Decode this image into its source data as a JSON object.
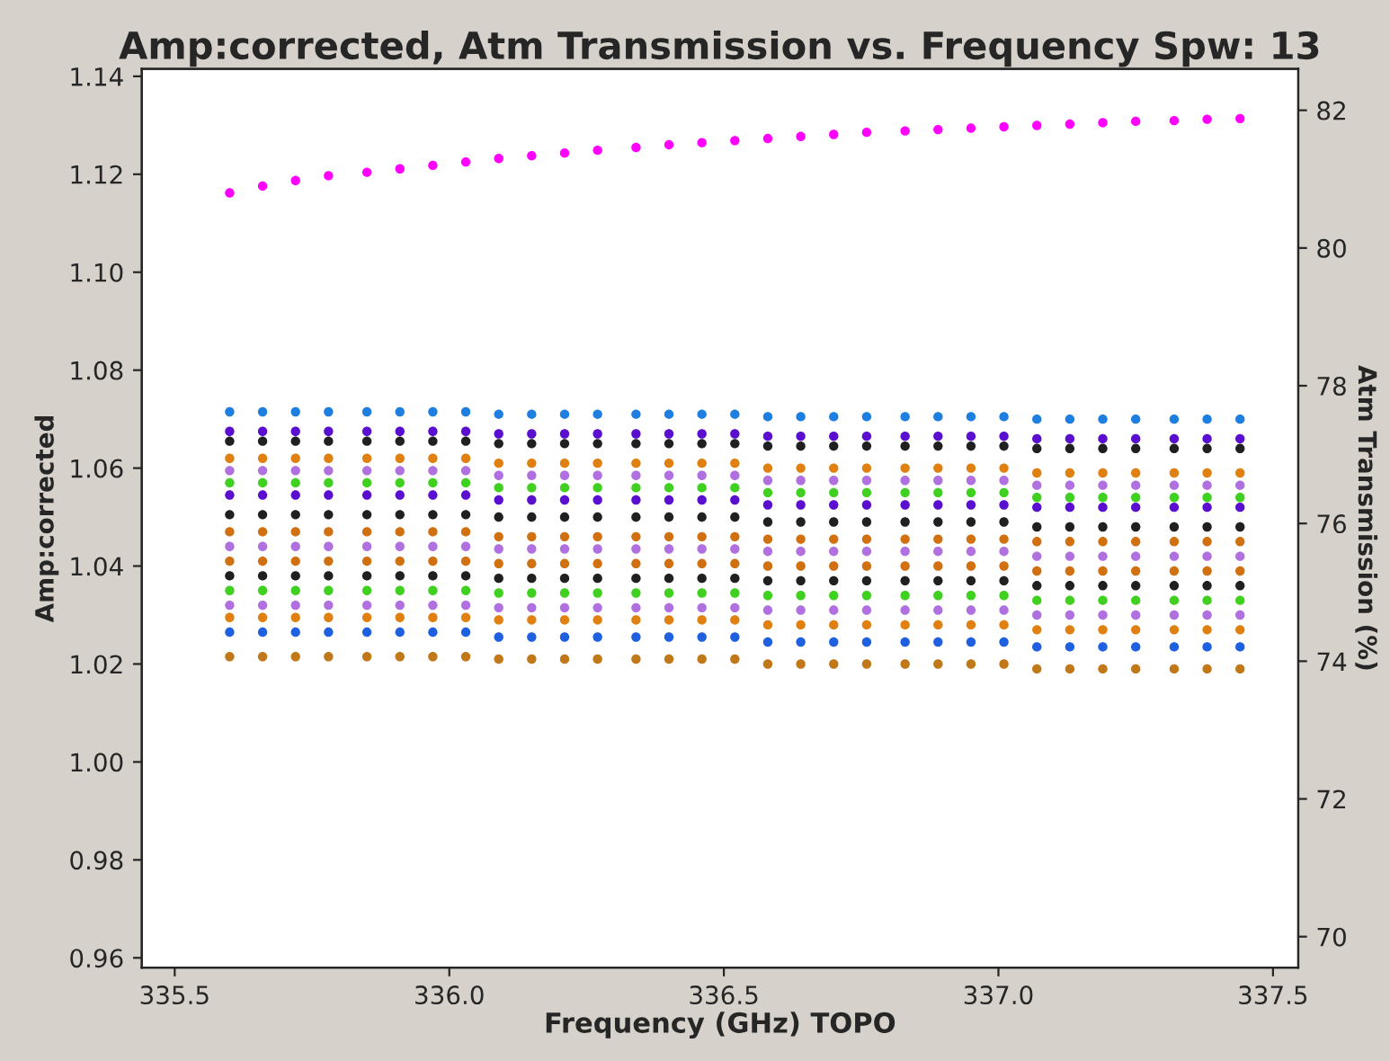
{
  "chart_data": {
    "type": "scatter",
    "title": "Amp:corrected, Atm Transmission vs. Frequency Spw: 13",
    "xlabel": "Frequency (GHz) TOPO",
    "ylabel": "Amp:corrected",
    "y2label": "Atm Transmission (%)",
    "x": [
      335.6,
      335.66,
      335.72,
      335.78,
      335.85,
      335.91,
      335.97,
      336.03,
      336.09,
      336.15,
      336.21,
      336.27,
      336.34,
      336.4,
      336.46,
      336.52,
      336.58,
      336.64,
      336.7,
      336.76,
      336.83,
      336.89,
      336.95,
      337.01,
      337.07,
      337.13,
      337.19,
      337.25,
      337.32,
      337.38,
      337.44
    ],
    "xlim": [
      335.44,
      337.546
    ],
    "xticks": [
      335.5,
      {
        "value": 336.0,
        "label": "336.0"
      },
      336.5,
      {
        "value": 337.0,
        "label": "337.0"
      },
      337.5
    ],
    "ylim": [
      0.958,
      1.1415
    ],
    "yticks": [
      {
        "value": 0.96,
        "label": "0.96"
      },
      {
        "value": 0.98,
        "label": "0.98"
      },
      {
        "value": 1.0,
        "label": "1.00"
      },
      {
        "value": 1.02,
        "label": "1.02"
      },
      {
        "value": 1.04,
        "label": "1.04"
      },
      {
        "value": 1.06,
        "label": "1.06"
      },
      {
        "value": 1.08,
        "label": "1.08"
      },
      {
        "value": 1.1,
        "label": "1.10"
      },
      {
        "value": 1.12,
        "label": "1.12"
      },
      {
        "value": 1.14,
        "label": "1.14"
      }
    ],
    "y2lim": [
      69.55,
      82.6
    ],
    "y2ticks": [
      70,
      72,
      74,
      76,
      78,
      80,
      82
    ],
    "marker": "circle",
    "grid": false,
    "legend": false,
    "series": [
      {
        "color": "#1f7fe0",
        "values": [
          1.0715,
          1.0715,
          1.0715,
          1.0715,
          1.0715,
          1.0715,
          1.0715,
          1.0715,
          1.071,
          1.071,
          1.071,
          1.071,
          1.071,
          1.071,
          1.071,
          1.071,
          1.0705,
          1.0705,
          1.0705,
          1.0705,
          1.0705,
          1.0705,
          1.0705,
          1.0705,
          1.07,
          1.07,
          1.07,
          1.07,
          1.07,
          1.07,
          1.07
        ]
      },
      {
        "color": "#5a0fd0",
        "values": [
          1.0675,
          1.0675,
          1.0675,
          1.0675,
          1.0675,
          1.0675,
          1.0675,
          1.0675,
          1.067,
          1.067,
          1.067,
          1.067,
          1.067,
          1.067,
          1.067,
          1.067,
          1.0665,
          1.0665,
          1.0665,
          1.0665,
          1.0665,
          1.0665,
          1.0665,
          1.0665,
          1.066,
          1.066,
          1.066,
          1.066,
          1.066,
          1.066,
          1.066
        ]
      },
      {
        "color": "#202020",
        "values": [
          1.0655,
          1.0655,
          1.0655,
          1.0655,
          1.0655,
          1.0655,
          1.0655,
          1.0655,
          1.065,
          1.065,
          1.065,
          1.065,
          1.065,
          1.065,
          1.065,
          1.065,
          1.0645,
          1.0645,
          1.0645,
          1.0645,
          1.0645,
          1.0645,
          1.0645,
          1.0645,
          1.064,
          1.064,
          1.064,
          1.064,
          1.064,
          1.064,
          1.064
        ]
      },
      {
        "color": "#e08010",
        "values": [
          1.062,
          1.062,
          1.062,
          1.062,
          1.062,
          1.062,
          1.062,
          1.062,
          1.061,
          1.061,
          1.061,
          1.061,
          1.061,
          1.061,
          1.061,
          1.061,
          1.06,
          1.06,
          1.06,
          1.06,
          1.06,
          1.06,
          1.06,
          1.06,
          1.059,
          1.059,
          1.059,
          1.059,
          1.059,
          1.059,
          1.059
        ]
      },
      {
        "color": "#b070e0",
        "values": [
          1.0595,
          1.0595,
          1.0595,
          1.0595,
          1.0595,
          1.0595,
          1.0595,
          1.0595,
          1.0585,
          1.0585,
          1.0585,
          1.0585,
          1.0585,
          1.0585,
          1.0585,
          1.0585,
          1.0575,
          1.0575,
          1.0575,
          1.0575,
          1.0575,
          1.0575,
          1.0575,
          1.0575,
          1.0565,
          1.0565,
          1.0565,
          1.0565,
          1.0565,
          1.0565,
          1.0565
        ]
      },
      {
        "color": "#40d020",
        "values": [
          1.057,
          1.057,
          1.057,
          1.057,
          1.057,
          1.057,
          1.057,
          1.057,
          1.056,
          1.056,
          1.056,
          1.056,
          1.056,
          1.056,
          1.056,
          1.056,
          1.055,
          1.055,
          1.055,
          1.055,
          1.055,
          1.055,
          1.055,
          1.055,
          1.054,
          1.054,
          1.054,
          1.054,
          1.054,
          1.054,
          1.054
        ]
      },
      {
        "color": "#5a0fd0",
        "values": [
          1.0545,
          1.0545,
          1.0545,
          1.0545,
          1.0545,
          1.0545,
          1.0545,
          1.0545,
          1.0535,
          1.0535,
          1.0535,
          1.0535,
          1.0535,
          1.0535,
          1.0535,
          1.0535,
          1.0525,
          1.0525,
          1.0525,
          1.0525,
          1.0525,
          1.0525,
          1.0525,
          1.0525,
          1.052,
          1.052,
          1.052,
          1.052,
          1.052,
          1.052,
          1.052
        ]
      },
      {
        "color": "#202020",
        "values": [
          1.0505,
          1.0505,
          1.0505,
          1.0505,
          1.0505,
          1.0505,
          1.0505,
          1.0505,
          1.05,
          1.05,
          1.05,
          1.05,
          1.05,
          1.05,
          1.05,
          1.05,
          1.049,
          1.049,
          1.049,
          1.049,
          1.049,
          1.049,
          1.049,
          1.049,
          1.048,
          1.048,
          1.048,
          1.048,
          1.048,
          1.048,
          1.048
        ]
      },
      {
        "color": "#d07010",
        "values": [
          1.047,
          1.047,
          1.047,
          1.047,
          1.047,
          1.047,
          1.047,
          1.047,
          1.046,
          1.046,
          1.046,
          1.046,
          1.046,
          1.046,
          1.046,
          1.046,
          1.0455,
          1.0455,
          1.0455,
          1.0455,
          1.0455,
          1.0455,
          1.0455,
          1.0455,
          1.045,
          1.045,
          1.045,
          1.045,
          1.045,
          1.045,
          1.045
        ]
      },
      {
        "color": "#b070e0",
        "values": [
          1.044,
          1.044,
          1.044,
          1.044,
          1.044,
          1.044,
          1.044,
          1.044,
          1.0435,
          1.0435,
          1.0435,
          1.0435,
          1.0435,
          1.0435,
          1.0435,
          1.0435,
          1.043,
          1.043,
          1.043,
          1.043,
          1.043,
          1.043,
          1.043,
          1.043,
          1.042,
          1.042,
          1.042,
          1.042,
          1.042,
          1.042,
          1.042
        ]
      },
      {
        "color": "#d07010",
        "values": [
          1.041,
          1.041,
          1.041,
          1.041,
          1.041,
          1.041,
          1.041,
          1.041,
          1.0405,
          1.0405,
          1.0405,
          1.0405,
          1.0405,
          1.0405,
          1.0405,
          1.0405,
          1.04,
          1.04,
          1.04,
          1.04,
          1.04,
          1.04,
          1.04,
          1.04,
          1.039,
          1.039,
          1.039,
          1.039,
          1.039,
          1.039,
          1.039
        ]
      },
      {
        "color": "#202020",
        "values": [
          1.038,
          1.038,
          1.038,
          1.038,
          1.038,
          1.038,
          1.038,
          1.038,
          1.0375,
          1.0375,
          1.0375,
          1.0375,
          1.0375,
          1.0375,
          1.0375,
          1.0375,
          1.037,
          1.037,
          1.037,
          1.037,
          1.037,
          1.037,
          1.037,
          1.037,
          1.036,
          1.036,
          1.036,
          1.036,
          1.036,
          1.036,
          1.036
        ]
      },
      {
        "color": "#40d020",
        "values": [
          1.035,
          1.035,
          1.035,
          1.035,
          1.035,
          1.035,
          1.035,
          1.035,
          1.0345,
          1.0345,
          1.0345,
          1.0345,
          1.0345,
          1.0345,
          1.0345,
          1.0345,
          1.034,
          1.034,
          1.034,
          1.034,
          1.034,
          1.034,
          1.034,
          1.034,
          1.033,
          1.033,
          1.033,
          1.033,
          1.033,
          1.033,
          1.033
        ]
      },
      {
        "color": "#b070e0",
        "values": [
          1.032,
          1.032,
          1.032,
          1.032,
          1.032,
          1.032,
          1.032,
          1.032,
          1.0315,
          1.0315,
          1.0315,
          1.0315,
          1.0315,
          1.0315,
          1.0315,
          1.0315,
          1.031,
          1.031,
          1.031,
          1.031,
          1.031,
          1.031,
          1.031,
          1.031,
          1.03,
          1.03,
          1.03,
          1.03,
          1.03,
          1.03,
          1.03
        ]
      },
      {
        "color": "#e08010",
        "values": [
          1.0295,
          1.0295,
          1.0295,
          1.0295,
          1.0295,
          1.0295,
          1.0295,
          1.0295,
          1.029,
          1.029,
          1.029,
          1.029,
          1.029,
          1.029,
          1.029,
          1.029,
          1.028,
          1.028,
          1.028,
          1.028,
          1.028,
          1.028,
          1.028,
          1.028,
          1.027,
          1.027,
          1.027,
          1.027,
          1.027,
          1.027,
          1.027
        ]
      },
      {
        "color": "#1f60e0",
        "values": [
          1.0265,
          1.0265,
          1.0265,
          1.0265,
          1.0265,
          1.0265,
          1.0265,
          1.0265,
          1.0255,
          1.0255,
          1.0255,
          1.0255,
          1.0255,
          1.0255,
          1.0255,
          1.0255,
          1.0245,
          1.0245,
          1.0245,
          1.0245,
          1.0245,
          1.0245,
          1.0245,
          1.0245,
          1.0235,
          1.0235,
          1.0235,
          1.0235,
          1.0235,
          1.0235,
          1.0235
        ]
      },
      {
        "color": "#c07818",
        "values": [
          1.0215,
          1.0215,
          1.0215,
          1.0215,
          1.0215,
          1.0215,
          1.0215,
          1.0215,
          1.021,
          1.021,
          1.021,
          1.021,
          1.021,
          1.021,
          1.021,
          1.021,
          1.02,
          1.02,
          1.02,
          1.02,
          1.02,
          1.02,
          1.02,
          1.02,
          1.019,
          1.019,
          1.019,
          1.019,
          1.019,
          1.019,
          1.019
        ]
      },
      {
        "color": "#ff00ff",
        "axis": "y2",
        "values": [
          80.8,
          80.9,
          80.98,
          81.05,
          81.1,
          81.15,
          81.2,
          81.25,
          81.3,
          81.34,
          81.38,
          81.42,
          81.46,
          81.5,
          81.53,
          81.56,
          81.59,
          81.62,
          81.65,
          81.68,
          81.7,
          81.72,
          81.74,
          81.76,
          81.78,
          81.8,
          81.82,
          81.84,
          81.85,
          81.87,
          81.88
        ]
      }
    ]
  }
}
